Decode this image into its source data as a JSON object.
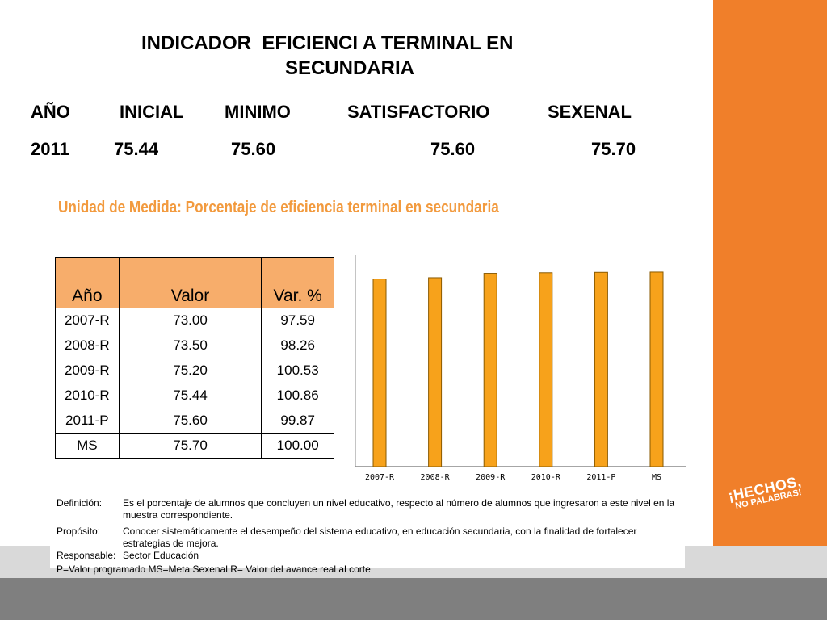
{
  "title_line1": "INDICADOR  EFICIENCI A TERMINAL EN",
  "title_line2": "SECUNDARIA",
  "headers": {
    "year": "AÑO",
    "initial": "INICIAL",
    "minimum": "MINIMO",
    "satisfactory": "SATISFACTORIO",
    "sexennial": "SEXENAL"
  },
  "values": {
    "year": "2011",
    "initial": "75.44",
    "minimum": "75.60",
    "satisfactory": "75.60",
    "sexennial": "75.70"
  },
  "unit_title": "Unidad de Medida:  Porcentaje de eficiencia terminal en secundaria",
  "table": {
    "headers": [
      "Año",
      "Valor",
      "Var. %"
    ],
    "rows": [
      [
        "2007-R",
        "73.00",
        "97.59"
      ],
      [
        "2008-R",
        "73.50",
        "98.26"
      ],
      [
        "2009-R",
        "75.20",
        "100.53"
      ],
      [
        "2010-R",
        "75.44",
        "100.86"
      ],
      [
        "2011-P",
        "75.60",
        "99.87"
      ],
      [
        "MS",
        "75.70",
        "100.00"
      ]
    ]
  },
  "chart_data": {
    "type": "bar",
    "categories": [
      "2007-R",
      "2008-R",
      "2009-R",
      "2010-R",
      "2011-P",
      "MS"
    ],
    "values": [
      73.0,
      73.5,
      75.2,
      75.44,
      75.6,
      75.7
    ],
    "ylim": [
      0,
      76
    ],
    "bar_color": "#f7a21b",
    "bar_edge": "#8a5a00",
    "grid": false
  },
  "definitions": {
    "definicion_label": "Definición:",
    "definicion_text": "Es el porcentaje de alumnos que concluyen un nivel educativo, respecto al número de alumnos que ingresaron a este nivel en la muestra correspondiente.",
    "proposito_label": "Propósito:",
    "proposito_text": "Conocer sistemáticamente el desempeño del sistema educativo, en educación secundaria, con la finalidad de fortalecer estrategias de mejora.",
    "responsable_label": "Responsable:",
    "responsable_text": "Sector Educación",
    "legend": "P=Valor programado   MS=Meta Sexenal   R= Valor del avance real al corte"
  },
  "logo": {
    "line1": "¡HECHOS,",
    "line2": "NO PALABRAS!"
  },
  "colors": {
    "accent_orange": "#f07f2a",
    "table_header": "#f7ad6b",
    "unit_title": "#f29a3e"
  }
}
